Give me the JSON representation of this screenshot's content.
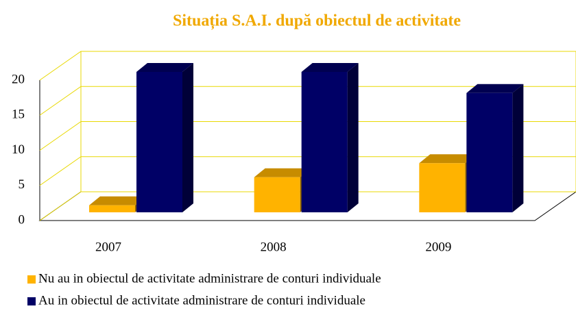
{
  "chart_data": {
    "type": "bar3d",
    "title": "Situația S.A.I. după obiectul de activitate",
    "categories": [
      "2007",
      "2008",
      "2009"
    ],
    "series": [
      {
        "name": "Nu au in obiectul de activitate administrare de conturi individuale",
        "color": "#ffb300",
        "values": [
          1,
          5,
          7
        ]
      },
      {
        "name": "Au in obiectul de activitate administrare de conturi individuale",
        "color": "#000066",
        "values": [
          20,
          20,
          17
        ]
      }
    ],
    "ylim": [
      0,
      20
    ],
    "yticks": [
      0,
      5,
      10,
      15,
      20
    ],
    "grid": true,
    "gridcolor": "#e8d800"
  }
}
